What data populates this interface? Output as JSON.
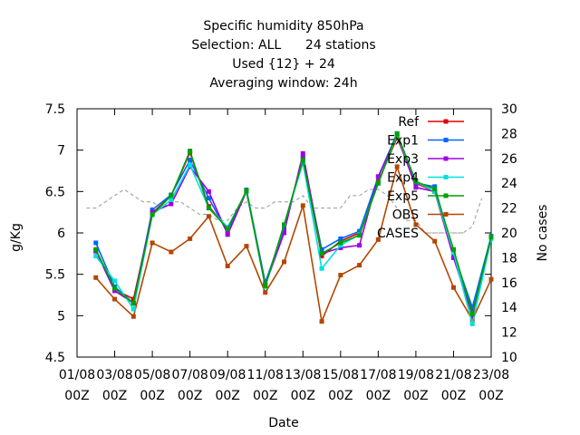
{
  "chart_data": {
    "type": "line",
    "title": [
      "Specific humidity 850hPa",
      "Selection: ALL      24 stations",
      "Used {12} + 24",
      "Averaging window: 24h"
    ],
    "xlabel": "Date",
    "ylabel": "g/Kg",
    "y2label": "No cases",
    "ylim": [
      4.5,
      7.5
    ],
    "y2lim": [
      10,
      30
    ],
    "y_ticks": [
      "4.5",
      "5",
      "5.5",
      "6",
      "6.5",
      "7",
      "7.5"
    ],
    "y2_ticks": [
      "10",
      "12",
      "14",
      "16",
      "18",
      "20",
      "22",
      "24",
      "26",
      "28",
      "30"
    ],
    "x_ticks": [
      {
        "date": "01/08",
        "time": "00Z"
      },
      {
        "date": "03/08",
        "time": "00Z"
      },
      {
        "date": "05/08",
        "time": "00Z"
      },
      {
        "date": "07/08",
        "time": "00Z"
      },
      {
        "date": "09/08",
        "time": "00Z"
      },
      {
        "date": "11/08",
        "time": "00Z"
      },
      {
        "date": "13/08",
        "time": "00Z"
      },
      {
        "date": "15/08",
        "time": "00Z"
      },
      {
        "date": "17/08",
        "time": "00Z"
      },
      {
        "date": "19/08",
        "time": "00Z"
      },
      {
        "date": "21/08",
        "time": "00Z"
      },
      {
        "date": "23/08",
        "time": "00Z"
      }
    ],
    "x_range_days": [
      0,
      22
    ],
    "x_days": [
      1,
      2,
      3,
      4,
      5,
      6,
      7,
      8,
      9,
      10,
      11,
      12,
      13,
      14,
      15,
      16,
      17,
      18,
      19,
      20,
      21,
      22
    ],
    "grid": false,
    "legend_position": "top-right",
    "series": [
      {
        "name": "Ref",
        "color": "#dd0000",
        "marker": "square",
        "values": [
          5.79,
          5.32,
          5.2,
          6.24,
          6.45,
          6.97,
          6.32,
          6.05,
          6.5,
          5.36,
          6.08,
          6.9,
          5.72,
          5.9,
          6.0,
          6.62,
          7.15,
          6.6,
          6.5,
          5.78,
          5.05,
          5.95
        ]
      },
      {
        "name": "Exp1",
        "color": "#0066ff",
        "marker": "square",
        "values": [
          5.88,
          5.35,
          5.15,
          6.28,
          6.46,
          6.88,
          6.42,
          6.0,
          6.52,
          5.4,
          6.05,
          6.92,
          5.8,
          5.93,
          6.02,
          6.68,
          7.2,
          6.6,
          6.56,
          5.75,
          5.1,
          5.96
        ]
      },
      {
        "name": "Exp3",
        "color": "#a000e0",
        "marker": "square",
        "values": [
          5.78,
          5.3,
          5.15,
          6.25,
          6.35,
          6.8,
          6.5,
          5.98,
          6.5,
          5.37,
          6.0,
          6.96,
          5.75,
          5.82,
          5.85,
          6.68,
          7.18,
          6.55,
          6.5,
          5.7,
          5.0,
          5.95
        ]
      },
      {
        "name": "Exp4",
        "color": "#00e0e0",
        "marker": "square",
        "values": [
          5.72,
          5.42,
          5.08,
          6.22,
          6.4,
          6.82,
          6.3,
          6.07,
          6.5,
          5.35,
          6.1,
          6.85,
          5.57,
          5.85,
          5.98,
          6.6,
          7.18,
          6.62,
          6.5,
          5.76,
          4.9,
          5.93
        ]
      },
      {
        "name": "Exp5",
        "color": "#00a000",
        "marker": "square",
        "values": [
          5.8,
          5.33,
          5.15,
          6.22,
          6.45,
          6.99,
          6.3,
          6.05,
          6.51,
          5.36,
          6.1,
          6.88,
          5.75,
          5.88,
          5.97,
          6.6,
          7.2,
          6.62,
          6.53,
          5.8,
          5.02,
          5.95
        ]
      },
      {
        "name": "OBS",
        "color": "#b34700",
        "marker": "square",
        "values": [
          5.46,
          5.2,
          4.99,
          5.88,
          5.77,
          5.93,
          6.2,
          5.6,
          5.84,
          5.28,
          5.65,
          6.33,
          4.93,
          5.49,
          5.61,
          5.92,
          6.8,
          6.1,
          5.9,
          5.34,
          4.95,
          5.44
        ]
      },
      {
        "name": "CASES",
        "color": "#999999",
        "marker": "none",
        "dashed": true,
        "axis": "y2",
        "days": [
          0.5,
          1.0,
          1.5,
          2.0,
          2.5,
          3.0,
          3.5,
          4.0,
          4.5,
          5.0,
          5.5,
          6.0,
          6.5,
          7.0,
          7.5,
          8.0,
          8.5,
          9.0,
          9.5,
          10.0,
          10.5,
          11.0,
          11.5,
          12.0,
          12.5,
          13.0,
          13.5,
          14.0,
          14.5,
          15.0,
          15.5,
          16.0,
          16.5,
          17.0,
          17.5,
          18.0,
          18.5,
          19.0,
          19.5,
          20.0,
          20.5,
          21.0,
          21.5
        ],
        "values": [
          22,
          22,
          22.5,
          23,
          23.5,
          23,
          22.5,
          22.5,
          22,
          22.5,
          22.5,
          22,
          21.5,
          21.5,
          21,
          21,
          22,
          22.5,
          22,
          22,
          22.5,
          22.5,
          22.5,
          23,
          22,
          22,
          22,
          22,
          23,
          23,
          23.5,
          23.5,
          23,
          22,
          21,
          21,
          20,
          20,
          20,
          20,
          20,
          20.5,
          22.8
        ]
      }
    ]
  }
}
